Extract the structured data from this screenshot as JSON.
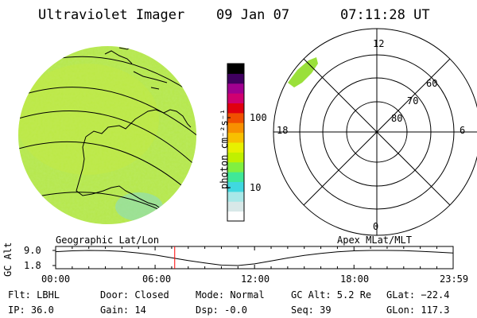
{
  "header": {
    "title": "Ultraviolet Imager",
    "date": "09 Jan 07",
    "time": "07:11:28 UT"
  },
  "colorbar": {
    "unit_label": "photon cm⁻²s⁻¹",
    "ticks": [
      "100",
      "10"
    ],
    "colors": [
      "#ffffff",
      "#d8e8e8",
      "#a8e8e8",
      "#40d8e0",
      "#40e898",
      "#80f040",
      "#c0f000",
      "#e8f000",
      "#f8c000",
      "#f89000",
      "#f05000",
      "#e00010",
      "#d00070",
      "#a00090",
      "#400060",
      "#000000"
    ]
  },
  "polar_plot": {
    "mlt_labels": [
      "12",
      "18",
      "6",
      "0"
    ],
    "mlat_labels": [
      "60",
      "70",
      "80"
    ]
  },
  "timeline": {
    "left_label": "Geographic Lat/Lon",
    "right_label": "Apex MLat/MLT",
    "ylabel": "GC Alt",
    "y_ticks": [
      "9.0",
      "1.8"
    ],
    "x_ticks": [
      "00:00",
      "06:00",
      "12:00",
      "18:00",
      "23:59"
    ],
    "current_marker_color": "#ff0000"
  },
  "chart_data": {
    "type": "line",
    "title": "",
    "xlabel": "",
    "ylabel": "GC Alt",
    "ylim": [
      1.8,
      9.0
    ],
    "x": [
      "00:00",
      "01:00",
      "02:00",
      "03:00",
      "04:00",
      "05:00",
      "06:00",
      "07:00",
      "08:00",
      "09:00",
      "10:00",
      "11:00",
      "12:00",
      "13:00",
      "14:00",
      "15:00",
      "16:00",
      "17:00",
      "18:00",
      "19:00",
      "20:00",
      "21:00",
      "22:00",
      "23:00",
      "23:59"
    ],
    "values": [
      8.4,
      8.8,
      9.0,
      8.9,
      8.5,
      7.8,
      6.8,
      5.5,
      4.2,
      3.0,
      2.0,
      1.8,
      2.6,
      4.0,
      5.4,
      6.6,
      7.6,
      8.3,
      8.8,
      9.0,
      9.0,
      8.9,
      8.6,
      8.2,
      7.8
    ],
    "marker_time": "07:11"
  },
  "status": {
    "flt": "Flt: LBHL",
    "ip": "IP: 36.0",
    "door": "Door: Closed",
    "gain": "Gain: 14",
    "mode": "Mode: Normal",
    "dsp": "Dsp:   -0.0",
    "gc_alt": "GC Alt: 5.2 Re",
    "seq": "Seq: 39",
    "glat": "GLat: −22.4",
    "glon": "GLon: 117.3"
  }
}
